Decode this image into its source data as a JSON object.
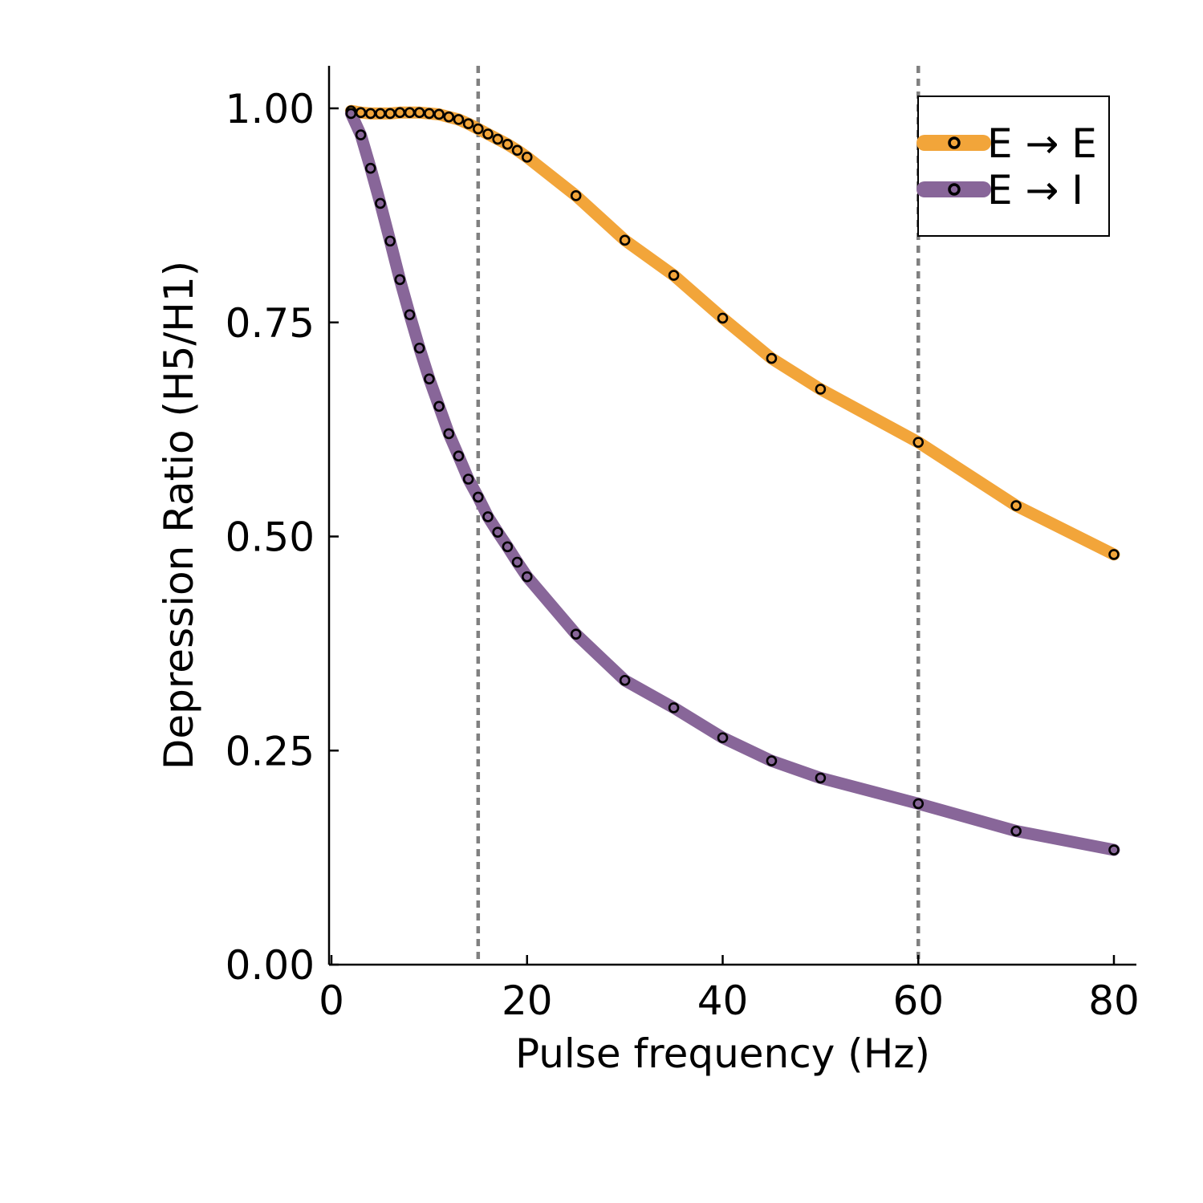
{
  "chart_data": {
    "type": "line",
    "title": "",
    "xlabel": "Pulse frequency (Hz)",
    "ylabel": "Depression Ratio (H5/H1)",
    "xlim": [
      0,
      82
    ],
    "ylim": [
      0,
      1.06
    ],
    "x_ticks": [
      0,
      20,
      40,
      60,
      80
    ],
    "x_tick_labels": [
      "0",
      "20",
      "40",
      "60",
      "80"
    ],
    "y_ticks": [
      0,
      0.25,
      0.5,
      0.75,
      1.0
    ],
    "y_tick_labels": [
      "0.00",
      "0.25",
      "0.50",
      "0.75",
      "1.00"
    ],
    "grid": false,
    "legend_position": "top-right",
    "vlines": [
      {
        "x": 15,
        "style": "dotted",
        "color": "#808080"
      },
      {
        "x": 60,
        "style": "dotted",
        "color": "#808080"
      }
    ],
    "x": [
      2,
      3,
      4,
      5,
      6,
      7,
      8,
      9,
      10,
      11,
      12,
      13,
      14,
      15,
      16,
      17,
      18,
      19,
      20,
      25,
      30,
      35,
      40,
      45,
      50,
      60,
      70,
      80
    ],
    "series": [
      {
        "name": "E → E",
        "color": "#F2A53A",
        "marker": "open-circle",
        "values": [
          0.997,
          0.995,
          0.994,
          0.994,
          0.994,
          0.995,
          0.995,
          0.995,
          0.994,
          0.993,
          0.99,
          0.987,
          0.982,
          0.976,
          0.97,
          0.964,
          0.958,
          0.951,
          0.943,
          0.898,
          0.846,
          0.805,
          0.755,
          0.708,
          0.672,
          0.61,
          0.536,
          0.479
        ]
      },
      {
        "name": "E → I",
        "color": "#886699",
        "marker": "open-circle",
        "values": [
          0.994,
          0.969,
          0.93,
          0.889,
          0.845,
          0.8,
          0.759,
          0.72,
          0.684,
          0.652,
          0.62,
          0.594,
          0.567,
          0.546,
          0.523,
          0.505,
          0.488,
          0.47,
          0.453,
          0.386,
          0.332,
          0.3,
          0.265,
          0.238,
          0.218,
          0.188,
          0.156,
          0.134
        ]
      }
    ]
  }
}
